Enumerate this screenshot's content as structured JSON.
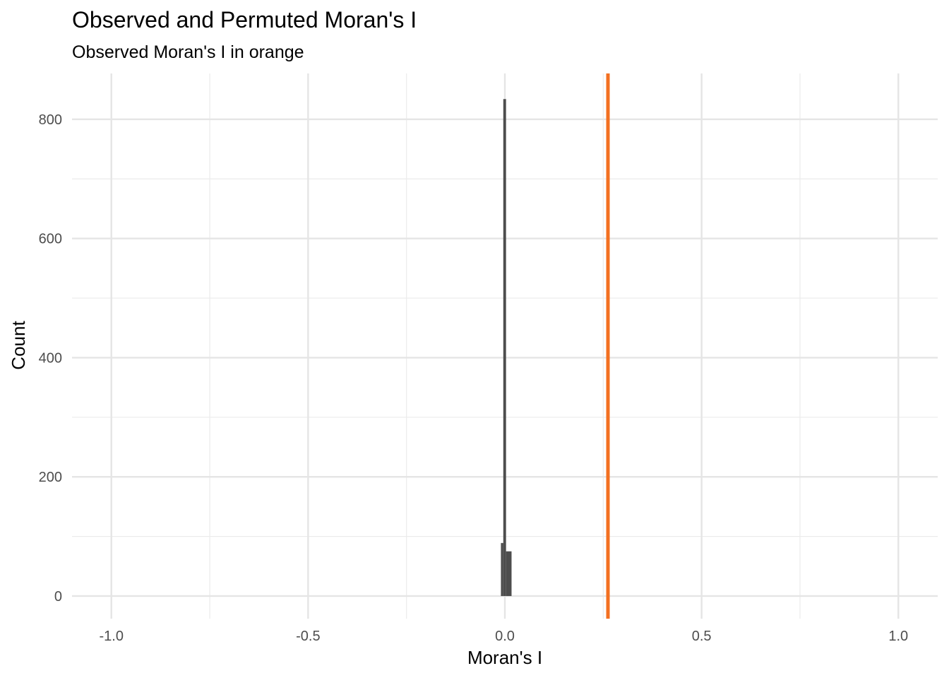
{
  "chart_data": {
    "type": "bar",
    "title": "Observed and Permuted Moran's I",
    "subtitle": "Observed Moran's I in orange",
    "xlabel": "Moran's I",
    "ylabel": "Count",
    "xlim": [
      -1.1,
      1.1
    ],
    "ylim": [
      -38,
      877
    ],
    "x_ticks": [
      -1.0,
      -0.5,
      0.0,
      0.5,
      1.0
    ],
    "x_tick_labels": [
      "-1.0",
      "-0.5",
      "0.0",
      "0.5",
      "1.0"
    ],
    "y_ticks": [
      0,
      200,
      400,
      600,
      800
    ],
    "y_tick_labels": [
      "0",
      "200",
      "400",
      "600",
      "800"
    ],
    "grid": true,
    "bins": [
      {
        "x0": -0.01,
        "x1": -0.004,
        "count": 89
      },
      {
        "x0": -0.004,
        "x1": 0.003,
        "count": 834
      },
      {
        "x0": 0.003,
        "x1": 0.017,
        "count": 75
      }
    ],
    "bar_color": "#4d4d4d",
    "observed_value": 0.262,
    "observed_color": "#f37021"
  }
}
